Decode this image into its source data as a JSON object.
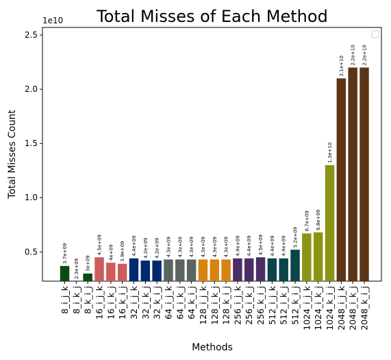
{
  "chart_data": {
    "type": "bar",
    "title": "Total Misses of Each Method",
    "xlabel": "Methods",
    "ylabel": "Total Misses Count",
    "y_offset_label": "1e10",
    "categories": [
      "8_i_j_k",
      "8_i_k_j",
      "8_k_i_j",
      "16_i_j_k",
      "16_i_k_j",
      "16_k_i_j",
      "32_i_j_k",
      "32_i_k_j",
      "32_k_i_j",
      "64_i_j_k",
      "64_i_k_j",
      "64_k_i_j",
      "128_i_j_k",
      "128_i_k_j",
      "128_k_i_j",
      "256_i_j_k",
      "256_i_k_j",
      "256_k_i_j",
      "512_i_j_k",
      "512_i_k_j",
      "512_k_i_j",
      "1024_i_j_k",
      "1024_i_k_j",
      "1024_k_i_j",
      "2048_i_j_k",
      "2048_i_k_j",
      "2048_k_i_j"
    ],
    "values": [
      3700000000,
      2300000000,
      3000000000,
      4500000000,
      4000000000,
      3900000000,
      4400000000,
      4200000000,
      4200000000,
      4300000000,
      4300000000,
      4300000000,
      4300000000,
      4300000000,
      4300000000,
      4400000000,
      4400000000,
      4500000000,
      4400000000,
      4400000000,
      5200000000,
      6700000000,
      6800000000,
      13000000000,
      21000000000,
      22000000000,
      22000000000
    ],
    "value_labels": [
      "3.7e+09",
      "2.3e+09",
      "3e+09",
      "4.5e+09",
      "4e+09",
      "3.9e+09",
      "4.4e+09",
      "4.2e+09",
      "4.2e+09",
      "4.3e+09",
      "4.3e+09",
      "4.3e+09",
      "4.3e+09",
      "4.3e+09",
      "4.3e+09",
      "4.4e+09",
      "4.4e+09",
      "4.5e+09",
      "4.4e+09",
      "4.4e+09",
      "5.2e+09",
      "6.7e+09",
      "6.8e+09",
      "1.3e+10",
      "2.1e+10",
      "2.2e+10",
      "2.2e+10"
    ],
    "colors": [
      "#0b4a12",
      "#0b4a12",
      "#0b4a12",
      "#cd5c5c",
      "#cd5c5c",
      "#cd5c5c",
      "#002a70",
      "#002a70",
      "#002a70",
      "#5b6560",
      "#5b6560",
      "#5b6560",
      "#d6830f",
      "#d6830f",
      "#d6830f",
      "#4b2e66",
      "#4b2e66",
      "#4b2e66",
      "#0b4548",
      "#0b4548",
      "#0b4548",
      "#8b9412",
      "#8b9412",
      "#8b9412",
      "#5c3516",
      "#5c3516",
      "#5c3516"
    ],
    "ylim": [
      2300000000,
      25700000000
    ],
    "yticks": [
      {
        "value": 5000000000,
        "label": "0.5"
      },
      {
        "value": 10000000000,
        "label": "1.0"
      },
      {
        "value": 15000000000,
        "label": "1.5"
      },
      {
        "value": 20000000000,
        "label": "2.0"
      },
      {
        "value": 25000000000,
        "label": "2.5"
      }
    ]
  }
}
